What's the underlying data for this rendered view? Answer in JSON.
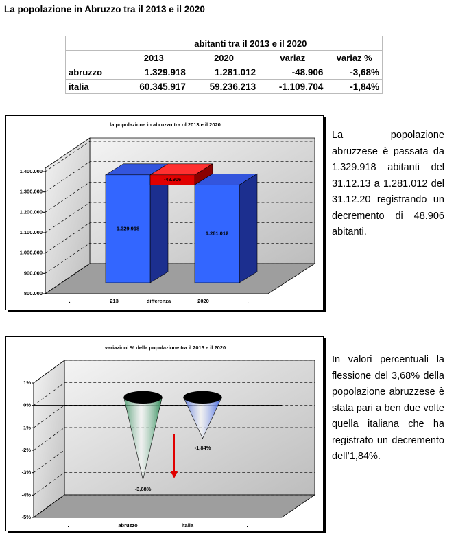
{
  "title": "La popolazione in Abruzzo tra il 2013 e il 2020",
  "table": {
    "caption": "abitanti tra il 2013 e il 2020",
    "header": [
      "2013",
      "2020",
      "variaz",
      "variaz %"
    ],
    "rows": [
      [
        "abruzzo",
        "1.329.918",
        "1.281.012",
        "-48.906",
        "-3,68%"
      ],
      [
        "italia",
        "60.345.917",
        "59.236.213",
        "-1.109.704",
        "-1,84%"
      ]
    ]
  },
  "chart_data": [
    {
      "type": "waterfall",
      "title": "la popolazione in abruzzo tra ol 2013 e il 2020",
      "categories": [
        ".",
        "213",
        "differenza",
        "2020",
        "."
      ],
      "values": [
        null,
        1329918,
        -48906,
        1281012,
        null
      ],
      "value_labels": [
        null,
        "1.329.918",
        "-48.906",
        "1.281.012",
        null
      ],
      "color": "#3366ff",
      "negative_color": "#e00000",
      "ylim": [
        800000,
        1400000
      ],
      "yticks": [
        {
          "value": 800000,
          "label": "800.000"
        },
        {
          "value": 900000,
          "label": "900.000"
        },
        {
          "value": 1000000,
          "label": "1.000.000"
        },
        {
          "value": 1100000,
          "label": "1.100.000"
        },
        {
          "value": 1200000,
          "label": "1.200.000"
        },
        {
          "value": 1300000,
          "label": "1.300.000"
        },
        {
          "value": 1400000,
          "label": "1.400.000"
        }
      ],
      "grid": true
    },
    {
      "type": "cone",
      "title": "variazioni % della popolazione tra il 2013 e il 2020",
      "categories": [
        ".",
        "abruzzo",
        "italia",
        "."
      ],
      "values": [
        null,
        -3.68,
        -1.84,
        null
      ],
      "value_labels": [
        null,
        "-3,68%",
        "-1,84%",
        null
      ],
      "colors": [
        null,
        "#2e8b57",
        "#3a5fdd",
        null
      ],
      "ylim": [
        -5,
        1
      ],
      "yticks": [
        {
          "value": -5,
          "label": "-5%"
        },
        {
          "value": -4,
          "label": "-4%"
        },
        {
          "value": -3,
          "label": "-3%"
        },
        {
          "value": -2,
          "label": "-2%"
        },
        {
          "value": -1,
          "label": "-1%"
        },
        {
          "value": 0,
          "label": "0%"
        },
        {
          "value": 1,
          "label": "1%"
        }
      ],
      "grid": true
    }
  ],
  "paragraphs": [
    "La popolazione abruzzese è passata da 1.329.918 abitanti del 31.12.13 a 1.281.012 del 31.12.20 registrando un decremento di 48.906 abitanti.",
    "In valori percentuali la flessione del 3,68% della popolazione abruzzese è stata pari a ben due volte quella italiana che ha registrato un decremento dell’1,84%."
  ]
}
